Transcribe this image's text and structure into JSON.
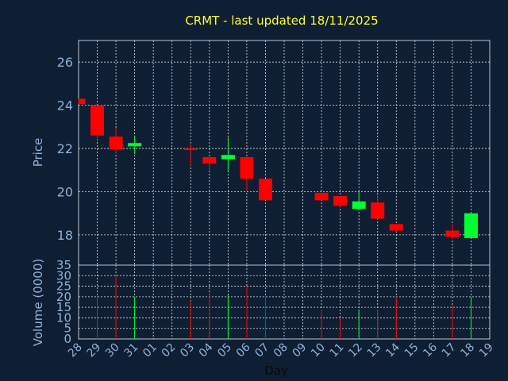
{
  "chart_data": {
    "type": "candlestick",
    "title": "CRMT - last updated 18/11/2025",
    "xlabel": "Day",
    "ylabel": "Price",
    "volume_label": "Volume (0000)",
    "x_ticks": [
      "28",
      "29",
      "30",
      "31",
      "01",
      "02",
      "03",
      "04",
      "05",
      "06",
      "07",
      "08",
      "09",
      "10",
      "11",
      "12",
      "13",
      "14",
      "15",
      "16",
      "17",
      "18",
      "19"
    ],
    "price_ylim": [
      16.6,
      27
    ],
    "price_ticks": [
      18,
      20,
      22,
      24,
      26
    ],
    "volume_ylim": [
      0,
      35
    ],
    "volume_ticks": [
      0,
      5,
      10,
      15,
      20,
      25,
      30,
      35
    ],
    "grid": true,
    "up_color": "#00ff33",
    "down_color": "#ff0000",
    "candles": [
      {
        "day": "28",
        "open": 24.3,
        "high": 24.3,
        "low": 24.05,
        "close": 24.05,
        "volume": 0
      },
      {
        "day": "29",
        "open": 24.0,
        "high": 24.0,
        "low": 22.4,
        "close": 22.6,
        "volume": 21
      },
      {
        "day": "30",
        "open": 22.55,
        "high": 22.95,
        "low": 21.8,
        "close": 21.95,
        "volume": 30
      },
      {
        "day": "31",
        "open": 22.1,
        "high": 22.6,
        "low": 21.75,
        "close": 22.25,
        "volume": 20
      },
      {
        "day": "03",
        "open": 22.0,
        "high": 22.25,
        "low": 21.2,
        "close": 21.95,
        "volume": 18
      },
      {
        "day": "04",
        "open": 21.6,
        "high": 21.6,
        "low": 21.0,
        "close": 21.3,
        "volume": 22
      },
      {
        "day": "05",
        "open": 21.5,
        "high": 22.5,
        "low": 20.95,
        "close": 21.7,
        "volume": 21
      },
      {
        "day": "06",
        "open": 21.6,
        "high": 21.6,
        "low": 20.0,
        "close": 20.6,
        "volume": 25
      },
      {
        "day": "07",
        "open": 20.6,
        "high": 20.6,
        "low": 19.6,
        "close": 19.6,
        "volume": 20
      },
      {
        "day": "10",
        "open": 19.95,
        "high": 19.95,
        "low": 19.6,
        "close": 19.6,
        "volume": 14
      },
      {
        "day": "11",
        "open": 19.8,
        "high": 19.8,
        "low": 19.3,
        "close": 19.35,
        "volume": 10
      },
      {
        "day": "12",
        "open": 19.2,
        "high": 20.0,
        "low": 19.15,
        "close": 19.55,
        "volume": 14
      },
      {
        "day": "13",
        "open": 19.5,
        "high": 19.85,
        "low": 18.7,
        "close": 18.75,
        "volume": 14
      },
      {
        "day": "14",
        "open": 18.5,
        "high": 18.5,
        "low": 18.15,
        "close": 18.2,
        "volume": 20
      },
      {
        "day": "17",
        "open": 18.2,
        "high": 18.5,
        "low": 17.8,
        "close": 17.9,
        "volume": 16
      },
      {
        "day": "18",
        "open": 17.85,
        "high": 19.0,
        "low": 17.85,
        "close": 19.0,
        "volume": 20
      }
    ]
  }
}
